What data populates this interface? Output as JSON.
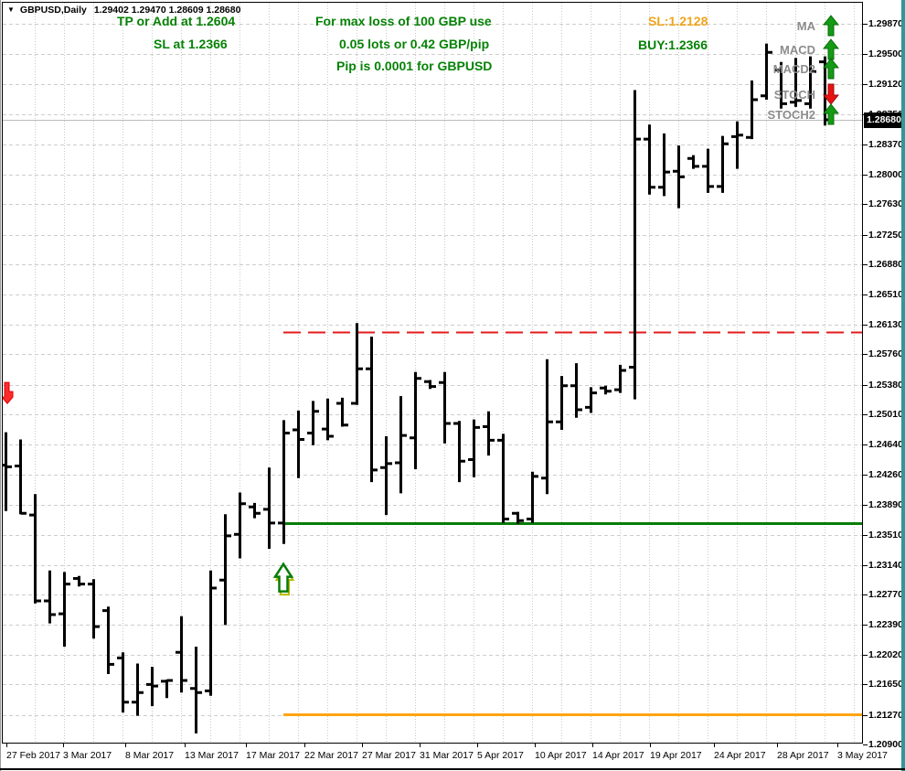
{
  "window": {
    "symbol_label": "GBPUSD,Daily",
    "ohlc_label": "1.29402 1.29470 1.28609 1.28680"
  },
  "annotations": {
    "tp_line1": "TP or Add at 1.2604",
    "tp_line2": "SL at 1.2366",
    "center_line1": "For max loss of 100 GBP use",
    "center_line2": "0.05 lots or 0.42 GBP/pip",
    "center_line3": "Pip is 0.0001 for GBPUSD",
    "sl_label": "SL:1.2128",
    "buy_label": "BUY:1.2366"
  },
  "signal_panel": {
    "rows": [
      {
        "label": "MA",
        "direction": "up"
      },
      {
        "label": "MACD",
        "direction": "up"
      },
      {
        "label": "MACD2",
        "direction": "up"
      },
      {
        "label": "STOCH",
        "direction": "down"
      },
      {
        "label": "STOCH2",
        "direction": "up"
      }
    ],
    "up_color": "#149a14",
    "down_color": "#e81212"
  },
  "price_axis": {
    "current_price": "1.28680",
    "labels": [
      "1.29870",
      "1.29500",
      "1.29120",
      "1.28750",
      "1.28370",
      "1.28000",
      "1.27630",
      "1.27250",
      "1.26880",
      "1.26510",
      "1.26130",
      "1.25760",
      "1.25380",
      "1.25010",
      "1.24640",
      "1.24260",
      "1.23890",
      "1.23510",
      "1.23140",
      "1.22770",
      "1.22390",
      "1.22020",
      "1.21650",
      "1.21270",
      "1.20900"
    ]
  },
  "time_axis": {
    "labels": [
      "27 Feb 2017",
      "3 Mar 2017",
      "8 Mar 2017",
      "13 Mar 2017",
      "17 Mar 2017",
      "22 Mar 2017",
      "27 Mar 2017",
      "31 Mar 2017",
      "5 Apr 2017",
      "10 Apr 2017",
      "14 Apr 2017",
      "19 Apr 2017",
      "24 Apr 2017",
      "28 Apr 2017",
      "3 May 2017"
    ]
  },
  "chart_data": {
    "type": "bar",
    "subtype": "ohlc-bars",
    "symbol": "GBPUSD",
    "timeframe": "Daily",
    "bar_color": "#000000",
    "y_range": [
      1.209,
      1.2987
    ],
    "grid": {
      "h_step_price": 0.0037,
      "v_step_bars": 2
    },
    "levels": [
      {
        "name": "tp_resistance",
        "price": 1.2604,
        "color": "#e41b1b",
        "style": "dashed",
        "from_bar_index": 19
      },
      {
        "name": "buy_entry",
        "price": 1.2366,
        "color": "#077d07",
        "style": "solid",
        "from_bar_index": 19
      },
      {
        "name": "stop_loss",
        "price": 1.2128,
        "color": "#ffa510",
        "style": "solid",
        "from_bar_index": 19
      },
      {
        "name": "current_price",
        "price": 1.2868,
        "color": "#bcbcbc",
        "style": "solid",
        "from_bar_index": 0
      }
    ],
    "markers": [
      {
        "type": "buy-arrow-up",
        "bar_index": 19,
        "price": 1.2315
      },
      {
        "type": "sell-arrow-down",
        "bar_index": 0,
        "price": 1.2541
      }
    ],
    "bars": [
      {
        "date": "27 Feb",
        "o": 1.2438,
        "h": 1.2479,
        "l": 1.2381,
        "c": 1.2436
      },
      {
        "date": "28 Feb",
        "o": 1.2437,
        "h": 1.247,
        "l": 1.2377,
        "c": 1.2378
      },
      {
        "date": "1 Mar",
        "o": 1.2376,
        "h": 1.2402,
        "l": 1.2266,
        "c": 1.2269
      },
      {
        "date": "2 Mar",
        "o": 1.2269,
        "h": 1.2307,
        "l": 1.2241,
        "c": 1.2252
      },
      {
        "date": "3 Mar",
        "o": 1.2253,
        "h": 1.2305,
        "l": 1.2212,
        "c": 1.229
      },
      {
        "date": "5 Mar",
        "o": 1.2297,
        "h": 1.23,
        "l": 1.2287,
        "c": 1.229
      },
      {
        "date": "6 Mar",
        "o": 1.229,
        "h": 1.2296,
        "l": 1.2222,
        "c": 1.2237
      },
      {
        "date": "7 Mar",
        "o": 1.2257,
        "h": 1.2262,
        "l": 1.2178,
        "c": 1.219
      },
      {
        "date": "8 Mar",
        "o": 1.2198,
        "h": 1.2205,
        "l": 1.213,
        "c": 1.2143
      },
      {
        "date": "9 Mar",
        "o": 1.2143,
        "h": 1.2191,
        "l": 1.2126,
        "c": 1.2155
      },
      {
        "date": "10 Mar",
        "o": 1.2165,
        "h": 1.2187,
        "l": 1.2138,
        "c": 1.2163
      },
      {
        "date": "12 Mar",
        "o": 1.2169,
        "h": 1.2171,
        "l": 1.2148,
        "c": 1.217
      },
      {
        "date": "13 Mar",
        "o": 1.2205,
        "h": 1.225,
        "l": 1.2155,
        "c": 1.217
      },
      {
        "date": "14 Mar",
        "o": 1.216,
        "h": 1.2212,
        "l": 1.2104,
        "c": 1.2155
      },
      {
        "date": "15 Mar",
        "o": 1.2157,
        "h": 1.2307,
        "l": 1.2151,
        "c": 1.2285
      },
      {
        "date": "16 Mar",
        "o": 1.2295,
        "h": 1.2377,
        "l": 1.2239,
        "c": 1.235
      },
      {
        "date": "17 Mar",
        "o": 1.2352,
        "h": 1.2404,
        "l": 1.2322,
        "c": 1.239
      },
      {
        "date": "19 Mar",
        "o": 1.2386,
        "h": 1.2391,
        "l": 1.2372,
        "c": 1.2378
      },
      {
        "date": "20 Mar",
        "o": 1.2383,
        "h": 1.2435,
        "l": 1.2334,
        "c": 1.2366
      },
      {
        "date": "21 Mar",
        "o": 1.2366,
        "h": 1.2494,
        "l": 1.234,
        "c": 1.2478
      },
      {
        "date": "22 Mar",
        "o": 1.2482,
        "h": 1.2506,
        "l": 1.2422,
        "c": 1.247
      },
      {
        "date": "23 Mar",
        "o": 1.2478,
        "h": 1.2518,
        "l": 1.2463,
        "c": 1.2505
      },
      {
        "date": "24 Mar",
        "o": 1.2483,
        "h": 1.2521,
        "l": 1.2469,
        "c": 1.2474
      },
      {
        "date": "26 Mar",
        "o": 1.2515,
        "h": 1.2522,
        "l": 1.2486,
        "c": 1.2488
      },
      {
        "date": "27 Mar",
        "o": 1.2515,
        "h": 1.2615,
        "l": 1.2513,
        "c": 1.2558
      },
      {
        "date": "28 Mar",
        "o": 1.2558,
        "h": 1.2598,
        "l": 1.2417,
        "c": 1.2432
      },
      {
        "date": "29 Mar",
        "o": 1.2435,
        "h": 1.2474,
        "l": 1.2376,
        "c": 1.244
      },
      {
        "date": "30 Mar",
        "o": 1.2441,
        "h": 1.2524,
        "l": 1.2403,
        "c": 1.2475
      },
      {
        "date": "31 Mar",
        "o": 1.2472,
        "h": 1.2554,
        "l": 1.2433,
        "c": 1.2546
      },
      {
        "date": "2 Apr",
        "o": 1.2542,
        "h": 1.2544,
        "l": 1.2533,
        "c": 1.2536
      },
      {
        "date": "3 Apr",
        "o": 1.2541,
        "h": 1.2554,
        "l": 1.2465,
        "c": 1.249
      },
      {
        "date": "4 Apr",
        "o": 1.249,
        "h": 1.2493,
        "l": 1.2417,
        "c": 1.2443
      },
      {
        "date": "5 Apr",
        "o": 1.2445,
        "h": 1.2495,
        "l": 1.2423,
        "c": 1.2485
      },
      {
        "date": "6 Apr",
        "o": 1.2486,
        "h": 1.2505,
        "l": 1.245,
        "c": 1.2469
      },
      {
        "date": "7 Apr",
        "o": 1.2469,
        "h": 1.2477,
        "l": 1.2366,
        "c": 1.2371
      },
      {
        "date": "9 Apr",
        "o": 1.2378,
        "h": 1.238,
        "l": 1.2365,
        "c": 1.2369
      },
      {
        "date": "10 Apr",
        "o": 1.2371,
        "h": 1.243,
        "l": 1.2366,
        "c": 1.2424
      },
      {
        "date": "11 Apr",
        "o": 1.2422,
        "h": 1.257,
        "l": 1.2402,
        "c": 1.2492
      },
      {
        "date": "12 Apr",
        "o": 1.2492,
        "h": 1.2549,
        "l": 1.2482,
        "c": 1.2537
      },
      {
        "date": "13 Apr",
        "o": 1.2537,
        "h": 1.2565,
        "l": 1.2497,
        "c": 1.2507
      },
      {
        "date": "14 Apr",
        "o": 1.251,
        "h": 1.2535,
        "l": 1.2503,
        "c": 1.2528
      },
      {
        "date": "16 Apr",
        "o": 1.2534,
        "h": 1.2537,
        "l": 1.2526,
        "c": 1.253
      },
      {
        "date": "17 Apr",
        "o": 1.2532,
        "h": 1.2563,
        "l": 1.2528,
        "c": 1.2556
      },
      {
        "date": "18 Apr",
        "o": 1.256,
        "h": 1.2905,
        "l": 1.252,
        "c": 1.2844
      },
      {
        "date": "19 Apr",
        "o": 1.2844,
        "h": 1.2862,
        "l": 1.2775,
        "c": 1.2784
      },
      {
        "date": "20 Apr",
        "o": 1.2784,
        "h": 1.2851,
        "l": 1.2773,
        "c": 1.2803
      },
      {
        "date": "21 Apr",
        "o": 1.2804,
        "h": 1.2836,
        "l": 1.2758,
        "c": 1.2797
      },
      {
        "date": "23 Apr",
        "o": 1.282,
        "h": 1.2824,
        "l": 1.2807,
        "c": 1.281
      },
      {
        "date": "24 Apr",
        "o": 1.281,
        "h": 1.2832,
        "l": 1.2777,
        "c": 1.2785
      },
      {
        "date": "25 Apr",
        "o": 1.2785,
        "h": 1.2848,
        "l": 1.2777,
        "c": 1.2838
      },
      {
        "date": "26 Apr",
        "o": 1.2847,
        "h": 1.2866,
        "l": 1.2807,
        "c": 1.2849
      },
      {
        "date": "27 Apr",
        "o": 1.2846,
        "h": 1.2917,
        "l": 1.2844,
        "c": 1.2893
      },
      {
        "date": "28 Apr",
        "o": 1.2898,
        "h": 1.2963,
        "l": 1.2893,
        "c": 1.2952
      },
      {
        "date": "30 Apr",
        "o": 1.293,
        "h": 1.294,
        "l": 1.2882,
        "c": 1.2888
      },
      {
        "date": "1 May",
        "o": 1.289,
        "h": 1.2945,
        "l": 1.2884,
        "c": 1.2892
      },
      {
        "date": "2 May",
        "o": 1.2888,
        "h": 1.2947,
        "l": 1.2882,
        "c": 1.2928
      },
      {
        "date": "3 May",
        "o": 1.29402,
        "h": 1.2947,
        "l": 1.28609,
        "c": 1.2868
      }
    ]
  }
}
